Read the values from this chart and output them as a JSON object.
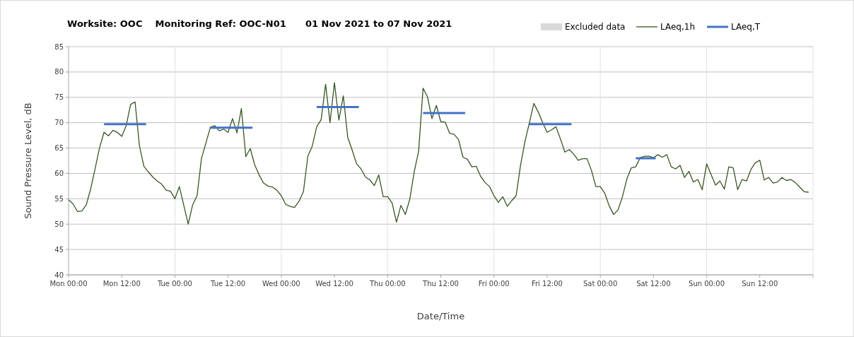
{
  "chart_data": {
    "type": "line",
    "title": "Worksite: OOC    Monitoring Ref: OOC-N01      01 Nov 2021 to 07 Nov 2021",
    "xlabel": "Date/Time",
    "ylabel": "Sound Pressure Level, dB",
    "x": [
      "2021-11-01T00:00",
      "2021-11-01T01:00",
      "2021-11-01T02:00",
      "2021-11-01T03:00",
      "2021-11-01T04:00",
      "2021-11-01T05:00",
      "2021-11-01T06:00",
      "2021-11-01T07:00",
      "2021-11-01T08:00",
      "2021-11-01T09:00",
      "2021-11-01T10:00",
      "2021-11-01T11:00",
      "2021-11-01T12:00",
      "2021-11-01T13:00",
      "2021-11-01T14:00",
      "2021-11-01T15:00",
      "2021-11-01T16:00",
      "2021-11-01T17:00",
      "2021-11-01T18:00",
      "2021-11-01T19:00",
      "2021-11-01T20:00",
      "2021-11-01T21:00",
      "2021-11-01T22:00",
      "2021-11-01T23:00",
      "2021-11-02T00:00",
      "2021-11-02T01:00",
      "2021-11-02T02:00",
      "2021-11-02T03:00",
      "2021-11-02T04:00",
      "2021-11-02T05:00",
      "2021-11-02T06:00",
      "2021-11-02T07:00",
      "2021-11-02T08:00",
      "2021-11-02T09:00",
      "2021-11-02T10:00",
      "2021-11-02T11:00",
      "2021-11-02T12:00",
      "2021-11-02T13:00",
      "2021-11-02T14:00",
      "2021-11-02T15:00",
      "2021-11-02T16:00",
      "2021-11-02T17:00",
      "2021-11-02T18:00",
      "2021-11-02T19:00",
      "2021-11-02T20:00",
      "2021-11-02T21:00",
      "2021-11-02T22:00",
      "2021-11-02T23:00",
      "2021-11-03T00:00",
      "2021-11-03T01:00",
      "2021-11-03T02:00",
      "2021-11-03T03:00",
      "2021-11-03T04:00",
      "2021-11-03T05:00",
      "2021-11-03T06:00",
      "2021-11-03T07:00",
      "2021-11-03T08:00",
      "2021-11-03T09:00",
      "2021-11-03T10:00",
      "2021-11-03T11:00",
      "2021-11-03T12:00",
      "2021-11-03T13:00",
      "2021-11-03T14:00",
      "2021-11-03T15:00",
      "2021-11-03T16:00",
      "2021-11-03T17:00",
      "2021-11-03T18:00",
      "2021-11-03T19:00",
      "2021-11-03T20:00",
      "2021-11-03T21:00",
      "2021-11-03T22:00",
      "2021-11-03T23:00",
      "2021-11-04T00:00",
      "2021-11-04T01:00",
      "2021-11-04T02:00",
      "2021-11-04T03:00",
      "2021-11-04T04:00",
      "2021-11-04T05:00",
      "2021-11-04T06:00",
      "2021-11-04T07:00",
      "2021-11-04T08:00",
      "2021-11-04T09:00",
      "2021-11-04T10:00",
      "2021-11-04T11:00",
      "2021-11-04T12:00",
      "2021-11-04T13:00",
      "2021-11-04T14:00",
      "2021-11-04T15:00",
      "2021-11-04T16:00",
      "2021-11-04T17:00",
      "2021-11-04T18:00",
      "2021-11-04T19:00",
      "2021-11-04T20:00",
      "2021-11-04T21:00",
      "2021-11-04T22:00",
      "2021-11-04T23:00",
      "2021-11-05T00:00",
      "2021-11-05T01:00",
      "2021-11-05T02:00",
      "2021-11-05T03:00",
      "2021-11-05T04:00",
      "2021-11-05T05:00",
      "2021-11-05T06:00",
      "2021-11-05T07:00",
      "2021-11-05T08:00",
      "2021-11-05T09:00",
      "2021-11-05T10:00",
      "2021-11-05T11:00",
      "2021-11-05T12:00",
      "2021-11-05T13:00",
      "2021-11-05T14:00",
      "2021-11-05T15:00",
      "2021-11-05T16:00",
      "2021-11-05T17:00",
      "2021-11-05T18:00",
      "2021-11-05T19:00",
      "2021-11-05T20:00",
      "2021-11-05T21:00",
      "2021-11-05T22:00",
      "2021-11-05T23:00",
      "2021-11-06T00:00",
      "2021-11-06T01:00",
      "2021-11-06T02:00",
      "2021-11-06T03:00",
      "2021-11-06T04:00",
      "2021-11-06T05:00",
      "2021-11-06T06:00",
      "2021-11-06T07:00",
      "2021-11-06T08:00",
      "2021-11-06T09:00",
      "2021-11-06T10:00",
      "2021-11-06T11:00",
      "2021-11-06T12:00",
      "2021-11-06T13:00",
      "2021-11-06T14:00",
      "2021-11-06T15:00",
      "2021-11-06T16:00",
      "2021-11-06T17:00",
      "2021-11-06T18:00",
      "2021-11-06T19:00",
      "2021-11-06T20:00",
      "2021-11-06T21:00",
      "2021-11-06T22:00",
      "2021-11-06T23:00",
      "2021-11-07T00:00",
      "2021-11-07T01:00",
      "2021-11-07T02:00",
      "2021-11-07T03:00",
      "2021-11-07T04:00",
      "2021-11-07T05:00",
      "2021-11-07T06:00",
      "2021-11-07T07:00",
      "2021-11-07T08:00",
      "2021-11-07T09:00",
      "2021-11-07T10:00",
      "2021-11-07T11:00",
      "2021-11-07T12:00",
      "2021-11-07T13:00",
      "2021-11-07T14:00",
      "2021-11-07T15:00",
      "2021-11-07T16:00",
      "2021-11-07T17:00",
      "2021-11-07T18:00",
      "2021-11-07T19:00",
      "2021-11-07T20:00",
      "2021-11-07T21:00",
      "2021-11-07T22:00",
      "2021-11-07T23:00"
    ],
    "series": [
      {
        "name": "Excluded data",
        "type": "area",
        "color": "#d9d9d9",
        "values": [
          null,
          null,
          null,
          null,
          null,
          null,
          null,
          null,
          null,
          null,
          null,
          null,
          null,
          null,
          null,
          null,
          null,
          null,
          null,
          null,
          null,
          null,
          null,
          null,
          null,
          null,
          null,
          null,
          null,
          null,
          null,
          null,
          null,
          null,
          null,
          null,
          null,
          null,
          null,
          null,
          null,
          null,
          null,
          null,
          null,
          null,
          null,
          null,
          null,
          null,
          null,
          null,
          null,
          null,
          null,
          null,
          null,
          null,
          null,
          null,
          null,
          null,
          null,
          null,
          null,
          null,
          null,
          null,
          null,
          null,
          null,
          null,
          null,
          null,
          null,
          null,
          null,
          null,
          null,
          null,
          null,
          null,
          null,
          null,
          null,
          null,
          null,
          null,
          null,
          null,
          null,
          null,
          null,
          null,
          null,
          null,
          null,
          null,
          null,
          null,
          null,
          null,
          null,
          null,
          null,
          null,
          null,
          null,
          null,
          null,
          null,
          null,
          null,
          null,
          null,
          null,
          null,
          null,
          null,
          null,
          null,
          null,
          null,
          null,
          null,
          null,
          null,
          null,
          null,
          null,
          null,
          null,
          null,
          null,
          null,
          null,
          null,
          null,
          null,
          null,
          null,
          null,
          null,
          null,
          null,
          null,
          null,
          null,
          null,
          null,
          null,
          null,
          null,
          null,
          null,
          null,
          null,
          null,
          null,
          null,
          null,
          null,
          null,
          null,
          null,
          null,
          null,
          null
        ]
      },
      {
        "name": "LAeq,1h",
        "color": "#375623",
        "values": [
          54.8,
          54.0,
          52.5,
          52.6,
          53.8,
          57.0,
          61.0,
          65.1,
          68.1,
          67.4,
          68.5,
          68.1,
          67.3,
          69.4,
          73.6,
          74.1,
          65.4,
          61.4,
          60.3,
          59.3,
          58.5,
          57.9,
          56.7,
          56.5,
          55.0,
          57.4,
          53.7,
          50.0,
          53.8,
          55.6,
          63.0,
          66.0,
          69.1,
          69.4,
          68.4,
          68.7,
          68.1,
          70.8,
          68.0,
          72.8,
          63.3,
          64.9,
          61.7,
          59.7,
          58.1,
          57.5,
          57.3,
          56.7,
          55.6,
          53.9,
          53.5,
          53.3,
          54.5,
          56.4,
          63.4,
          65.4,
          69.2,
          70.6,
          77.6,
          70.0,
          77.9,
          70.5,
          75.3,
          67.1,
          64.6,
          61.9,
          60.9,
          59.3,
          58.7,
          57.6,
          59.7,
          55.4,
          55.4,
          54.2,
          50.4,
          53.7,
          51.9,
          54.9,
          60.3,
          64.4,
          76.8,
          75.1,
          70.8,
          73.4,
          70.2,
          70.1,
          67.9,
          67.7,
          66.7,
          63.2,
          62.8,
          61.3,
          61.4,
          59.4,
          58.2,
          57.4,
          55.6,
          54.3,
          55.4,
          53.5,
          54.6,
          55.6,
          61.6,
          66.3,
          70.0,
          73.8,
          72.1,
          70.0,
          68.1,
          68.6,
          69.2,
          66.8,
          64.2,
          64.7,
          63.8,
          62.6,
          62.9,
          62.9,
          60.6,
          57.4,
          57.4,
          56.1,
          53.6,
          51.9,
          52.8,
          55.4,
          58.9,
          61.1,
          61.3,
          63.1,
          63.4,
          63.4,
          63.1,
          63.7,
          63.2,
          63.7,
          61.3,
          60.9,
          61.6,
          59.2,
          60.4,
          58.3,
          58.8,
          56.8,
          61.9,
          59.8,
          57.7,
          58.5,
          56.9,
          61.3,
          61.1,
          56.8,
          58.8,
          58.5,
          60.8,
          62.1,
          62.6,
          58.7,
          59.2,
          58.1,
          58.3,
          59.2,
          58.6,
          58.8,
          58.2,
          57.3,
          56.4,
          56.3
        ]
      },
      {
        "name": "LAeq,T",
        "color": "#4472c4",
        "x": [
          "2021-11-01T08:00",
          "2021-11-01T17:30",
          "2021-11-01T18:00",
          "2021-11-02T08:00",
          "2021-11-02T17:30",
          "2021-11-02T18:00",
          "2021-11-03T08:00",
          "2021-11-03T17:30",
          "2021-11-03T18:00",
          "2021-11-04T08:00",
          "2021-11-04T17:30",
          "2021-11-04T18:00",
          "2021-11-05T08:00",
          "2021-11-05T17:30",
          "2021-11-05T18:00",
          "2021-11-06T08:00",
          "2021-11-06T12:30"
        ],
        "values": [
          69.7,
          69.7,
          null,
          69.0,
          69.0,
          null,
          73.1,
          73.1,
          null,
          71.9,
          71.9,
          null,
          69.7,
          69.7,
          null,
          63.0,
          63.0
        ]
      }
    ],
    "xlim": [
      "2021-11-01T00:00",
      "2021-11-08T00:00"
    ],
    "xticks": [
      {
        "value": "2021-11-01T00:00",
        "label": "Mon 00:00"
      },
      {
        "value": "2021-11-01T12:00",
        "label": "Mon 12:00"
      },
      {
        "value": "2021-11-02T00:00",
        "label": "Tue 00:00"
      },
      {
        "value": "2021-11-02T12:00",
        "label": "Tue 12:00"
      },
      {
        "value": "2021-11-03T00:00",
        "label": "Wed 00:00"
      },
      {
        "value": "2021-11-03T12:00",
        "label": "Wed 12:00"
      },
      {
        "value": "2021-11-04T00:00",
        "label": "Thu 00:00"
      },
      {
        "value": "2021-11-04T12:00",
        "label": "Thu 12:00"
      },
      {
        "value": "2021-11-05T00:00",
        "label": "Fri 00:00"
      },
      {
        "value": "2021-11-05T12:00",
        "label": "Fri 12:00"
      },
      {
        "value": "2021-11-06T00:00",
        "label": "Sat 00:00"
      },
      {
        "value": "2021-11-06T12:00",
        "label": "Sat 12:00"
      },
      {
        "value": "2021-11-07T00:00",
        "label": "Sun 00:00"
      },
      {
        "value": "2021-11-07T12:00",
        "label": "Sun 12:00"
      },
      {
        "value": "2021-11-08T00:00",
        "label": null
      }
    ],
    "ylim": [
      40,
      85
    ],
    "yticks": [
      40,
      45,
      50,
      55,
      60,
      65,
      70,
      75,
      80,
      85
    ],
    "grid": true,
    "legend": "top right"
  }
}
